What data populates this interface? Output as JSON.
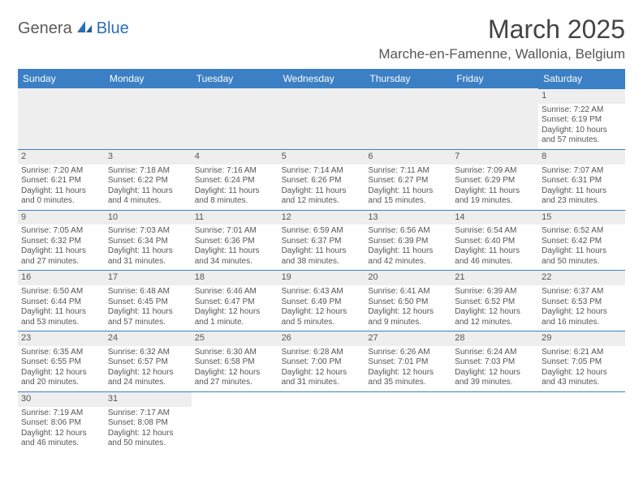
{
  "logo": {
    "part1": "Genera",
    "part2": "Blue"
  },
  "title": "March 2025",
  "location": "Marche-en-Famenne, Wallonia, Belgium",
  "colors": {
    "header_bg": "#3b7fc4",
    "header_text": "#ffffff",
    "daynum_bg": "#eeeeee",
    "border": "#3b7fc4",
    "text": "#555555",
    "logo_gray": "#5a5a5a",
    "logo_blue": "#2a6fb5"
  },
  "weekdays": [
    "Sunday",
    "Monday",
    "Tuesday",
    "Wednesday",
    "Thursday",
    "Friday",
    "Saturday"
  ],
  "weeks": [
    [
      null,
      null,
      null,
      null,
      null,
      null,
      {
        "n": "1",
        "sr": "Sunrise: 7:22 AM",
        "ss": "Sunset: 6:19 PM",
        "dl1": "Daylight: 10 hours",
        "dl2": "and 57 minutes."
      }
    ],
    [
      {
        "n": "2",
        "sr": "Sunrise: 7:20 AM",
        "ss": "Sunset: 6:21 PM",
        "dl1": "Daylight: 11 hours",
        "dl2": "and 0 minutes."
      },
      {
        "n": "3",
        "sr": "Sunrise: 7:18 AM",
        "ss": "Sunset: 6:22 PM",
        "dl1": "Daylight: 11 hours",
        "dl2": "and 4 minutes."
      },
      {
        "n": "4",
        "sr": "Sunrise: 7:16 AM",
        "ss": "Sunset: 6:24 PM",
        "dl1": "Daylight: 11 hours",
        "dl2": "and 8 minutes."
      },
      {
        "n": "5",
        "sr": "Sunrise: 7:14 AM",
        "ss": "Sunset: 6:26 PM",
        "dl1": "Daylight: 11 hours",
        "dl2": "and 12 minutes."
      },
      {
        "n": "6",
        "sr": "Sunrise: 7:11 AM",
        "ss": "Sunset: 6:27 PM",
        "dl1": "Daylight: 11 hours",
        "dl2": "and 15 minutes."
      },
      {
        "n": "7",
        "sr": "Sunrise: 7:09 AM",
        "ss": "Sunset: 6:29 PM",
        "dl1": "Daylight: 11 hours",
        "dl2": "and 19 minutes."
      },
      {
        "n": "8",
        "sr": "Sunrise: 7:07 AM",
        "ss": "Sunset: 6:31 PM",
        "dl1": "Daylight: 11 hours",
        "dl2": "and 23 minutes."
      }
    ],
    [
      {
        "n": "9",
        "sr": "Sunrise: 7:05 AM",
        "ss": "Sunset: 6:32 PM",
        "dl1": "Daylight: 11 hours",
        "dl2": "and 27 minutes."
      },
      {
        "n": "10",
        "sr": "Sunrise: 7:03 AM",
        "ss": "Sunset: 6:34 PM",
        "dl1": "Daylight: 11 hours",
        "dl2": "and 31 minutes."
      },
      {
        "n": "11",
        "sr": "Sunrise: 7:01 AM",
        "ss": "Sunset: 6:36 PM",
        "dl1": "Daylight: 11 hours",
        "dl2": "and 34 minutes."
      },
      {
        "n": "12",
        "sr": "Sunrise: 6:59 AM",
        "ss": "Sunset: 6:37 PM",
        "dl1": "Daylight: 11 hours",
        "dl2": "and 38 minutes."
      },
      {
        "n": "13",
        "sr": "Sunrise: 6:56 AM",
        "ss": "Sunset: 6:39 PM",
        "dl1": "Daylight: 11 hours",
        "dl2": "and 42 minutes."
      },
      {
        "n": "14",
        "sr": "Sunrise: 6:54 AM",
        "ss": "Sunset: 6:40 PM",
        "dl1": "Daylight: 11 hours",
        "dl2": "and 46 minutes."
      },
      {
        "n": "15",
        "sr": "Sunrise: 6:52 AM",
        "ss": "Sunset: 6:42 PM",
        "dl1": "Daylight: 11 hours",
        "dl2": "and 50 minutes."
      }
    ],
    [
      {
        "n": "16",
        "sr": "Sunrise: 6:50 AM",
        "ss": "Sunset: 6:44 PM",
        "dl1": "Daylight: 11 hours",
        "dl2": "and 53 minutes."
      },
      {
        "n": "17",
        "sr": "Sunrise: 6:48 AM",
        "ss": "Sunset: 6:45 PM",
        "dl1": "Daylight: 11 hours",
        "dl2": "and 57 minutes."
      },
      {
        "n": "18",
        "sr": "Sunrise: 6:46 AM",
        "ss": "Sunset: 6:47 PM",
        "dl1": "Daylight: 12 hours",
        "dl2": "and 1 minute."
      },
      {
        "n": "19",
        "sr": "Sunrise: 6:43 AM",
        "ss": "Sunset: 6:49 PM",
        "dl1": "Daylight: 12 hours",
        "dl2": "and 5 minutes."
      },
      {
        "n": "20",
        "sr": "Sunrise: 6:41 AM",
        "ss": "Sunset: 6:50 PM",
        "dl1": "Daylight: 12 hours",
        "dl2": "and 9 minutes."
      },
      {
        "n": "21",
        "sr": "Sunrise: 6:39 AM",
        "ss": "Sunset: 6:52 PM",
        "dl1": "Daylight: 12 hours",
        "dl2": "and 12 minutes."
      },
      {
        "n": "22",
        "sr": "Sunrise: 6:37 AM",
        "ss": "Sunset: 6:53 PM",
        "dl1": "Daylight: 12 hours",
        "dl2": "and 16 minutes."
      }
    ],
    [
      {
        "n": "23",
        "sr": "Sunrise: 6:35 AM",
        "ss": "Sunset: 6:55 PM",
        "dl1": "Daylight: 12 hours",
        "dl2": "and 20 minutes."
      },
      {
        "n": "24",
        "sr": "Sunrise: 6:32 AM",
        "ss": "Sunset: 6:57 PM",
        "dl1": "Daylight: 12 hours",
        "dl2": "and 24 minutes."
      },
      {
        "n": "25",
        "sr": "Sunrise: 6:30 AM",
        "ss": "Sunset: 6:58 PM",
        "dl1": "Daylight: 12 hours",
        "dl2": "and 27 minutes."
      },
      {
        "n": "26",
        "sr": "Sunrise: 6:28 AM",
        "ss": "Sunset: 7:00 PM",
        "dl1": "Daylight: 12 hours",
        "dl2": "and 31 minutes."
      },
      {
        "n": "27",
        "sr": "Sunrise: 6:26 AM",
        "ss": "Sunset: 7:01 PM",
        "dl1": "Daylight: 12 hours",
        "dl2": "and 35 minutes."
      },
      {
        "n": "28",
        "sr": "Sunrise: 6:24 AM",
        "ss": "Sunset: 7:03 PM",
        "dl1": "Daylight: 12 hours",
        "dl2": "and 39 minutes."
      },
      {
        "n": "29",
        "sr": "Sunrise: 6:21 AM",
        "ss": "Sunset: 7:05 PM",
        "dl1": "Daylight: 12 hours",
        "dl2": "and 43 minutes."
      }
    ],
    [
      {
        "n": "30",
        "sr": "Sunrise: 7:19 AM",
        "ss": "Sunset: 8:06 PM",
        "dl1": "Daylight: 12 hours",
        "dl2": "and 46 minutes."
      },
      {
        "n": "31",
        "sr": "Sunrise: 7:17 AM",
        "ss": "Sunset: 8:08 PM",
        "dl1": "Daylight: 12 hours",
        "dl2": "and 50 minutes."
      },
      null,
      null,
      null,
      null,
      null
    ]
  ]
}
